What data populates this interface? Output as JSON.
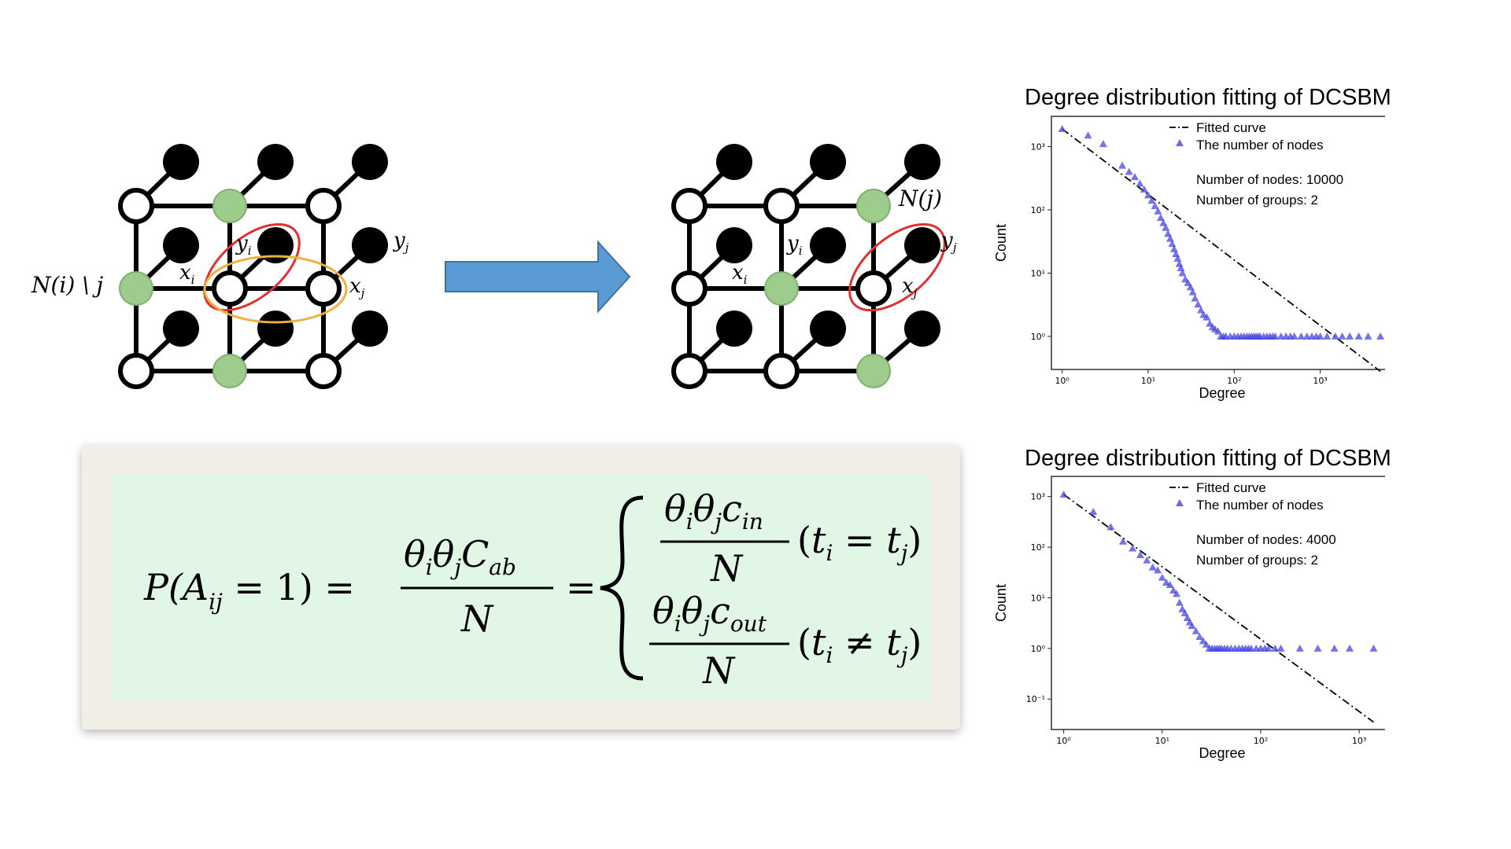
{
  "diagram": {
    "left_lattice": {
      "label_neighbors": "N(i) \\ j",
      "label_xi": "x",
      "label_xi_sub": "i",
      "label_yi": "y",
      "label_yi_sub": "i",
      "label_xj": "x",
      "label_xj_sub": "j",
      "label_yj": "y",
      "label_yj_sub": "j"
    },
    "right_lattice": {
      "label_neighbors": "N(j)",
      "label_xi": "x",
      "label_xi_sub": "i",
      "label_yi": "y",
      "label_yi_sub": "i",
      "label_xj": "x",
      "label_xj_sub": "j",
      "label_yj": "y",
      "label_yj_sub": "j"
    },
    "colors": {
      "arrow": "#5b9bd5",
      "green_node": "#9dcc8c",
      "red_ellipse": "#e03030",
      "orange_ellipse": "#f0b040",
      "formula_bg": "#e1f6e5",
      "card_bg": "#f1eee6"
    }
  },
  "formula": {
    "lhs": "P(A",
    "lhs_sub": "ij",
    "lhs_tail": " = 1) =",
    "frac_num": "θ",
    "frac_num_sub_i": "i",
    "frac_num_j": "θ",
    "frac_num_sub_j": "j",
    "frac_num_c": "C",
    "frac_num_sub_ab": "ab",
    "frac_den": "N",
    "equals": "=",
    "case1_num_c": "c",
    "case1_num_sub": "in",
    "case1_den": "N",
    "case1_cond_t1": "t",
    "case1_cond_op": " = ",
    "case1_cond_t2": "t",
    "case2_num_c": "c",
    "case2_num_sub": "out",
    "case2_den": "N",
    "case2_cond_op": " ≠ ",
    "sub_i": "i",
    "sub_j": "j"
  },
  "chart_data": [
    {
      "type": "scatter",
      "title": "Degree distribution fitting of DCSBM",
      "xlabel": "Degree",
      "ylabel": "Count",
      "x_scale": "log",
      "y_scale": "log",
      "xlim": [
        0.75,
        7000
      ],
      "ylim": [
        0.3,
        3000
      ],
      "x_tick_labels": [
        "10⁰",
        "10¹",
        "10²",
        "10³"
      ],
      "x_tick_values": [
        1,
        10,
        100,
        1000
      ],
      "y_tick_labels": [
        "10⁰",
        "10¹",
        "10²",
        "10³"
      ],
      "y_tick_values": [
        1,
        10,
        100,
        1000
      ],
      "legend_position": "top-right",
      "annotation_lines": [
        "Number of nodes: 10000",
        "Number of groups: 2"
      ],
      "series": [
        {
          "name": "Fitted curve",
          "style": "dash-dot",
          "color": "#000000",
          "x": [
            1,
            5000
          ],
          "y": [
            1900,
            0.28
          ]
        },
        {
          "name": "The number of nodes",
          "style": "triangle",
          "color": "#4646e0",
          "x": [
            1,
            2,
            3,
            5,
            6,
            7,
            8,
            9,
            10,
            11,
            12,
            13,
            14,
            15,
            16,
            17,
            18,
            19,
            20,
            21,
            22,
            23,
            24,
            25,
            27,
            29,
            31,
            33,
            35,
            38,
            41,
            44,
            48,
            52,
            56,
            60,
            65,
            70,
            75,
            80,
            90,
            100,
            110,
            120,
            130,
            140,
            150,
            160,
            170,
            180,
            190,
            200,
            220,
            240,
            260,
            280,
            300,
            350,
            400,
            450,
            500,
            600,
            700,
            800,
            900,
            1000,
            1200,
            1500,
            1800,
            2200,
            2800,
            3600,
            5000
          ],
          "y": [
            1900,
            1500,
            1100,
            500,
            400,
            330,
            260,
            210,
            170,
            140,
            115,
            95,
            75,
            62,
            52,
            42,
            35,
            29,
            24,
            20,
            17,
            14,
            12,
            10,
            8,
            7,
            6,
            5,
            4,
            3.2,
            2.6,
            2.2,
            2,
            1.6,
            1.4,
            1.3,
            1.2,
            1,
            1,
            1,
            1,
            1,
            1,
            1,
            1,
            1,
            1,
            1,
            1,
            1,
            1,
            1,
            1,
            1,
            1,
            1,
            1,
            1,
            1,
            1,
            1,
            1,
            1,
            1,
            1,
            1,
            1,
            1,
            1,
            1,
            1,
            1,
            1
          ]
        }
      ]
    },
    {
      "type": "scatter",
      "title": "Degree distribution fitting of DCSBM",
      "xlabel": "Degree",
      "ylabel": "Count",
      "x_scale": "log",
      "y_scale": "log",
      "xlim": [
        0.75,
        2200
      ],
      "ylim": [
        0.025,
        2500
      ],
      "x_tick_labels": [
        "10⁰",
        "10¹",
        "10²",
        "10³"
      ],
      "x_tick_values": [
        1,
        10,
        100,
        1000
      ],
      "y_tick_labels": [
        "10⁻¹",
        "10⁰",
        "10¹",
        "10²",
        "10³"
      ],
      "y_tick_values": [
        0.1,
        1,
        10,
        100,
        1000
      ],
      "legend_position": "top-right",
      "annotation_lines": [
        "Number of nodes: 4000",
        "Number of groups: 2"
      ],
      "series": [
        {
          "name": "Fitted curve",
          "style": "dash-dot",
          "color": "#000000",
          "x": [
            1,
            1400
          ],
          "y": [
            1100,
            0.035
          ]
        },
        {
          "name": "The number of nodes",
          "style": "triangle",
          "color": "#4646e0",
          "x": [
            1,
            2,
            3,
            4,
            5,
            6,
            7,
            8,
            9,
            10,
            11,
            12,
            13,
            14,
            15,
            16,
            17,
            18,
            19,
            20,
            22,
            24,
            26,
            28,
            30,
            32,
            34,
            36,
            38,
            40,
            43,
            46,
            50,
            55,
            60,
            65,
            70,
            75,
            80,
            90,
            100,
            110,
            120,
            140,
            160,
            250,
            380,
            560,
            800,
            1400
          ],
          "y": [
            1100,
            500,
            250,
            130,
            95,
            70,
            55,
            40,
            35,
            25,
            20,
            18,
            14,
            12,
            8,
            6,
            5,
            4,
            3.3,
            2.8,
            2.2,
            1.7,
            1.4,
            1.2,
            1,
            1,
            1,
            1,
            1,
            1,
            1,
            1,
            1,
            1,
            1,
            1,
            1,
            1,
            1,
            1,
            1,
            1,
            1,
            1,
            1,
            1,
            1,
            1,
            1,
            1
          ]
        }
      ]
    }
  ]
}
